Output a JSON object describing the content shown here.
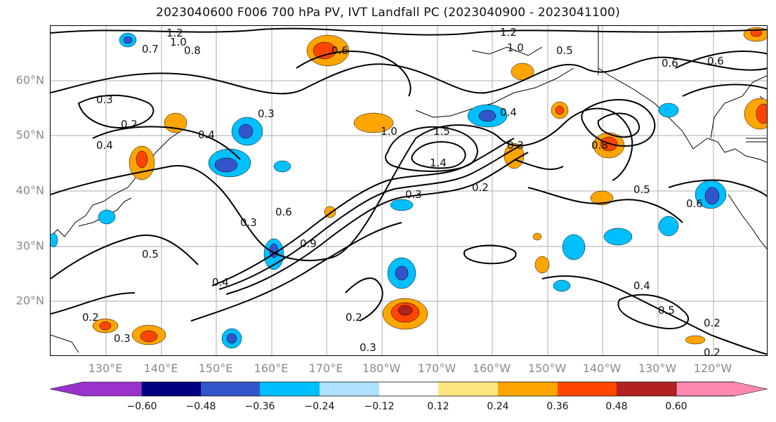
{
  "title": "2023040600 F006 700 hPa PV, IVT Landfall PC (2023040900 - 2023041100)",
  "lat_labels": [
    "60°N",
    "50°N",
    "40°N",
    "30°N",
    "20°N"
  ],
  "lon_labels": [
    "130°E",
    "140°E",
    "150°E",
    "160°E",
    "170°E",
    "180°W",
    "170°W",
    "160°W",
    "150°W",
    "140°W",
    "130°W",
    "120°W"
  ],
  "colorbar": {
    "tick_labels": [
      "−0.60",
      "−0.48",
      "−0.36",
      "−0.24",
      "−0.12",
      "0.12",
      "0.24",
      "0.36",
      "0.48",
      "0.60"
    ],
    "colors": [
      "#9933cc",
      "#000080",
      "#3355cc",
      "#00bfff",
      "#b0e0ff",
      "#ffffff",
      "#ffe680",
      "#ffa500",
      "#ff4500",
      "#b22222",
      "#ff88b0"
    ]
  },
  "contour_labels": [
    "1.2",
    "1.0",
    "0.8",
    "0.7",
    "0.6",
    "0.5",
    "0.4",
    "0.3",
    "0.2",
    "1.5",
    "1.4",
    "0.9",
    "0.3",
    "0.2",
    "0.4",
    "0.5"
  ],
  "contour_label_set": [
    "1.2",
    "1.0",
    "0.8",
    "0.6",
    "0.5",
    "0.4",
    "0.3",
    "0.2",
    "1.4",
    "1.5"
  ]
}
